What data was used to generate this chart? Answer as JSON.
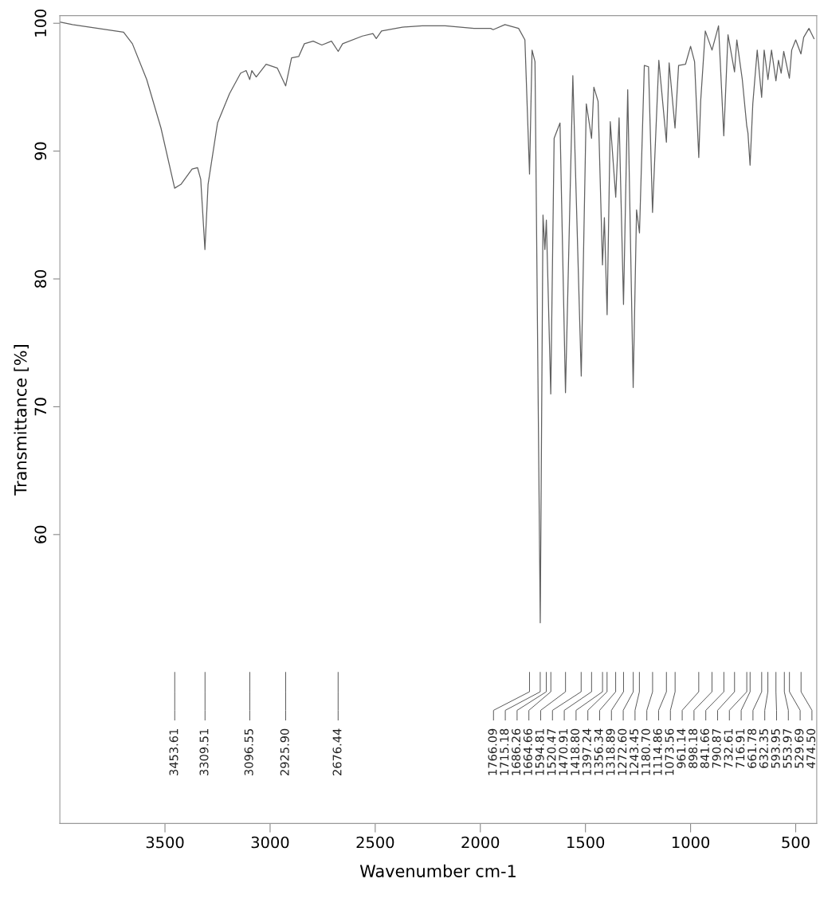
{
  "chart_data": {
    "type": "line",
    "xlabel": "Wavenumber cm-1",
    "ylabel": "Transmittance [%]",
    "x": [
      4000,
      3940,
      3697,
      3655,
      3587,
      3519,
      3454,
      3424,
      3371,
      3345,
      3330,
      3310,
      3295,
      3250,
      3193,
      3140,
      3114,
      3097,
      3087,
      3066,
      3019,
      2966,
      2926,
      2898,
      2864,
      2837,
      2795,
      2754,
      2708,
      2676,
      2655,
      2561,
      2511,
      2495,
      2470,
      2371,
      2276,
      2167,
      2030,
      1951,
      1939,
      1883,
      1818,
      1788,
      1766,
      1754,
      1740,
      1715,
      1702,
      1693,
      1686,
      1665,
      1649,
      1621,
      1595,
      1560,
      1520,
      1496,
      1471,
      1460,
      1440,
      1419,
      1410,
      1397,
      1382,
      1356,
      1340,
      1319,
      1299,
      1273,
      1257,
      1243,
      1220,
      1200,
      1181,
      1151,
      1115,
      1102,
      1074,
      1057,
      1024,
      1000,
      981,
      961,
      952,
      930,
      898,
      867,
      842,
      822,
      791,
      780,
      754,
      733,
      727,
      717,
      704,
      683,
      662,
      650,
      632,
      615,
      594,
      582,
      569,
      557,
      530,
      519,
      500,
      475,
      462,
      437,
      413
    ],
    "series": [
      {
        "color": "#606060",
        "values": [
          100.1,
          99.9,
          99.3,
          98.4,
          95.6,
          91.8,
          87.1,
          87.4,
          88.6,
          88.7,
          87.8,
          82.3,
          87.4,
          92.2,
          94.5,
          96.1,
          96.3,
          95.6,
          96.3,
          95.8,
          96.8,
          96.5,
          95.1,
          97.3,
          97.4,
          98.4,
          98.6,
          98.3,
          98.6,
          97.8,
          98.4,
          99.0,
          99.2,
          98.8,
          99.4,
          99.7,
          99.8,
          99.8,
          99.6,
          99.6,
          99.5,
          99.9,
          99.6,
          98.7,
          88.2,
          97.9,
          97.0,
          53.1,
          85.0,
          82.3,
          84.6,
          71.0,
          91.0,
          92.2,
          71.1,
          95.9,
          72.4,
          93.7,
          91.0,
          95.0,
          93.9,
          81.1,
          84.8,
          77.2,
          92.3,
          86.4,
          92.6,
          78.0,
          94.8,
          71.5,
          85.4,
          83.6,
          96.7,
          96.6,
          85.2,
          97.1,
          90.7,
          96.9,
          91.8,
          96.7,
          96.8,
          98.2,
          97.0,
          89.5,
          93.9,
          99.4,
          97.9,
          99.8,
          91.2,
          99.1,
          96.2,
          98.7,
          95.6,
          92.0,
          91.4,
          88.9,
          93.7,
          97.9,
          94.2,
          97.9,
          95.6,
          97.9,
          95.5,
          97.1,
          96.1,
          97.8,
          95.7,
          97.9,
          98.7,
          97.6,
          98.9,
          99.6,
          98.8
        ]
      }
    ],
    "xlim": [
      4000,
      400
    ],
    "ylim": [
      37.4,
      100.6
    ],
    "xticks": [
      3500,
      3000,
      2500,
      2000,
      1500,
      1000,
      500
    ],
    "yticks": [
      60,
      70,
      80,
      90,
      100
    ],
    "annotations": [
      {
        "text": "3453.61",
        "x": 3453.61
      },
      {
        "text": "3309.51",
        "x": 3309.51
      },
      {
        "text": "3096.55",
        "x": 3096.55
      },
      {
        "text": "2925.90",
        "x": 2925.9
      },
      {
        "text": "2676.44",
        "x": 2676.44
      },
      {
        "text": "1766.09",
        "x": 1766.09
      },
      {
        "text": "1715.18",
        "x": 1715.18
      },
      {
        "text": "1686.26",
        "x": 1686.26
      },
      {
        "text": "1664.66",
        "x": 1664.66
      },
      {
        "text": "1594.81",
        "x": 1594.81
      },
      {
        "text": "1520.47",
        "x": 1520.47
      },
      {
        "text": "1470.91",
        "x": 1470.91
      },
      {
        "text": "1418.80",
        "x": 1418.8
      },
      {
        "text": "1397.24",
        "x": 1397.24
      },
      {
        "text": "1356.34",
        "x": 1356.34
      },
      {
        "text": "1318.89",
        "x": 1318.89
      },
      {
        "text": "1272.60",
        "x": 1272.6
      },
      {
        "text": "1243.45",
        "x": 1243.45
      },
      {
        "text": "1180.70",
        "x": 1180.7
      },
      {
        "text": "1114.86",
        "x": 1114.86
      },
      {
        "text": "1073.56",
        "x": 1073.56
      },
      {
        "text": "961.14",
        "x": 961.14
      },
      {
        "text": "898.18",
        "x": 898.18
      },
      {
        "text": "841.66",
        "x": 841.66
      },
      {
        "text": "790.87",
        "x": 790.87
      },
      {
        "text": "732.61",
        "x": 732.61
      },
      {
        "text": "716.91",
        "x": 716.91
      },
      {
        "text": "661.78",
        "x": 661.78
      },
      {
        "text": "632.35",
        "x": 632.35
      },
      {
        "text": "593.95",
        "x": 593.95
      },
      {
        "text": "553.97",
        "x": 553.97
      },
      {
        "text": "529.69",
        "x": 529.69
      },
      {
        "text": "474.50",
        "x": 474.5
      }
    ]
  }
}
